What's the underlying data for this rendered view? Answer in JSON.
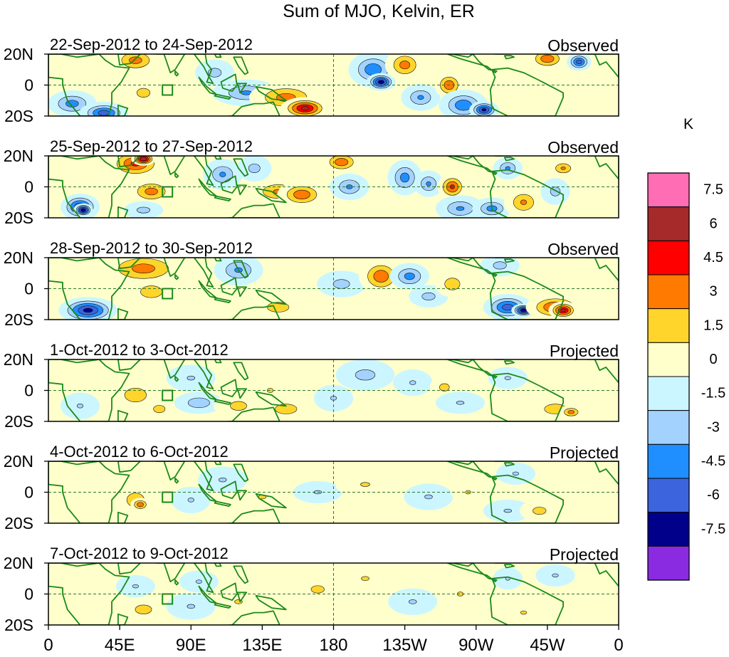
{
  "chart_data": {
    "type": "heatmap",
    "title": "Sum of MJO, Kelvin, ER",
    "units_label": "K",
    "lat_ticks": [
      "20N",
      "0",
      "20S"
    ],
    "lon_ticks": [
      "0",
      "45E",
      "90E",
      "135E",
      "180",
      "135W",
      "90W",
      "45W",
      "0"
    ],
    "colorbar": {
      "labels": [
        "7.5",
        "6",
        "4.5",
        "3",
        "1.5",
        "0",
        "-1.5",
        "-3",
        "-4.5",
        "-6",
        "-7.5"
      ],
      "colors": [
        "#ff6eb4",
        "#a52a2a",
        "#ff0000",
        "#ff7a00",
        "#ffd52c",
        "#ffffcc",
        "#ccf6ff",
        "#a4d2ff",
        "#1f8fff",
        "#3c64dc",
        "#00008b",
        "#8a2be2"
      ]
    },
    "panels": [
      {
        "date": "22-Sep-2012 to 24-Sep-2012",
        "tag": "Observed",
        "blobs": [
          [
            15,
            -12,
            10,
            6,
            -3.5
          ],
          [
            35,
            -18,
            10,
            5,
            -5
          ],
          [
            55,
            16,
            10,
            6,
            3.5
          ],
          [
            60,
            -5,
            8,
            6,
            2
          ],
          [
            105,
            8,
            8,
            6,
            -2
          ],
          [
            125,
            -5,
            14,
            6,
            -3
          ],
          [
            150,
            -8,
            15,
            7,
            3.5
          ],
          [
            162,
            -15,
            10,
            5,
            6
          ],
          [
            205,
            10,
            10,
            8,
            -4
          ],
          [
            210,
            2,
            6,
            4,
            -6.5
          ],
          [
            225,
            13,
            8,
            7,
            3.5
          ],
          [
            235,
            -8,
            8,
            6,
            -3
          ],
          [
            253,
            0,
            6,
            6,
            4
          ],
          [
            262,
            -13,
            10,
            7,
            -4
          ],
          [
            275,
            -16,
            6,
            4,
            -6
          ],
          [
            315,
            17,
            8,
            5,
            4
          ],
          [
            335,
            15,
            5,
            4,
            -5
          ]
        ]
      },
      {
        "date": "25-Sep-2012 to 27-Sep-2012",
        "tag": "Observed",
        "blobs": [
          [
            20,
            -13,
            8,
            6,
            -5.5
          ],
          [
            22,
            -15,
            4,
            3,
            -7
          ],
          [
            55,
            15,
            12,
            7,
            4.5
          ],
          [
            60,
            18,
            5,
            3,
            7
          ],
          [
            65,
            -3,
            10,
            6,
            3.5
          ],
          [
            60,
            -15,
            8,
            4,
            -2
          ],
          [
            110,
            8,
            8,
            7,
            -3
          ],
          [
            130,
            12,
            7,
            6,
            -2
          ],
          [
            145,
            -3,
            12,
            6,
            3
          ],
          [
            160,
            -5,
            10,
            6,
            4
          ],
          [
            185,
            16,
            8,
            5,
            4
          ],
          [
            190,
            0,
            8,
            6,
            -3
          ],
          [
            225,
            6,
            7,
            8,
            -3.5
          ],
          [
            240,
            2,
            6,
            6,
            -3
          ],
          [
            255,
            0,
            6,
            6,
            4.5
          ],
          [
            260,
            -14,
            10,
            6,
            -3
          ],
          [
            280,
            -14,
            8,
            5,
            -3.5
          ],
          [
            300,
            -10,
            8,
            7,
            3
          ],
          [
            320,
            -3,
            6,
            6,
            -2
          ],
          [
            290,
            12,
            6,
            5,
            -3
          ],
          [
            325,
            12,
            6,
            4,
            3
          ]
        ]
      },
      {
        "date": "28-Sep-2012 to 30-Sep-2012",
        "tag": "Observed",
        "blobs": [
          [
            25,
            -14,
            12,
            6,
            -6
          ],
          [
            60,
            13,
            18,
            8,
            3.5
          ],
          [
            65,
            -2,
            10,
            6,
            2.5
          ],
          [
            120,
            12,
            10,
            7,
            -3
          ],
          [
            145,
            -12,
            10,
            5,
            2.5
          ],
          [
            185,
            3,
            10,
            6,
            -2
          ],
          [
            210,
            8,
            9,
            8,
            4
          ],
          [
            228,
            8,
            8,
            6,
            -3.5
          ],
          [
            240,
            -5,
            8,
            5,
            -2
          ],
          [
            285,
            15,
            8,
            5,
            -2
          ],
          [
            290,
            -12,
            10,
            6,
            -5
          ],
          [
            300,
            -14,
            5,
            3,
            -7
          ],
          [
            320,
            -12,
            12,
            6,
            4.5
          ],
          [
            325,
            -14,
            6,
            4,
            6
          ],
          [
            255,
            3,
            7,
            6,
            2.5
          ]
        ]
      },
      {
        "date": "1-Oct-2012 to 3-Oct-2012",
        "tag": "Projected",
        "blobs": [
          [
            20,
            -10,
            8,
            6,
            -1.5
          ],
          [
            55,
            -3,
            10,
            7,
            2.5
          ],
          [
            70,
            -12,
            7,
            5,
            2
          ],
          [
            90,
            8,
            10,
            6,
            -1.5
          ],
          [
            95,
            -8,
            10,
            5,
            -2.5
          ],
          [
            120,
            -10,
            10,
            6,
            2
          ],
          [
            140,
            0,
            8,
            6,
            1.5
          ],
          [
            150,
            -12,
            10,
            5,
            2.5
          ],
          [
            180,
            -5,
            8,
            6,
            -1.5
          ],
          [
            200,
            10,
            12,
            7,
            -2
          ],
          [
            230,
            5,
            8,
            6,
            -1.5
          ],
          [
            250,
            2,
            6,
            5,
            2
          ],
          [
            260,
            -8,
            10,
            5,
            -1.5
          ],
          [
            290,
            8,
            8,
            5,
            -1.5
          ],
          [
            320,
            -12,
            10,
            5,
            2.5
          ],
          [
            330,
            -14,
            5,
            3,
            3.5
          ]
        ]
      },
      {
        "date": "4-Oct-2012 to 6-Oct-2012",
        "tag": "Projected",
        "blobs": [
          [
            55,
            -5,
            8,
            7,
            2.5
          ],
          [
            58,
            -8,
            4,
            3,
            4
          ],
          [
            90,
            -5,
            8,
            6,
            -1.5
          ],
          [
            110,
            8,
            10,
            6,
            -1.5
          ],
          [
            135,
            -3,
            10,
            6,
            1.5
          ],
          [
            170,
            0,
            10,
            5,
            -1.5
          ],
          [
            200,
            5,
            12,
            6,
            1.5
          ],
          [
            240,
            -3,
            10,
            6,
            -1.5
          ],
          [
            265,
            0,
            7,
            5,
            1.5
          ],
          [
            290,
            -12,
            10,
            5,
            -1.5
          ],
          [
            310,
            -12,
            8,
            5,
            2
          ],
          [
            295,
            12,
            8,
            5,
            -1.5
          ]
        ]
      },
      {
        "date": "7-Oct-2012 to 9-Oct-2012",
        "tag": "Projected",
        "blobs": [
          [
            60,
            -10,
            10,
            6,
            2
          ],
          [
            55,
            5,
            8,
            5,
            -1.5
          ],
          [
            90,
            -8,
            10,
            6,
            -1.5
          ],
          [
            95,
            8,
            8,
            5,
            -1.5
          ],
          [
            120,
            -5,
            10,
            6,
            1.5
          ],
          [
            170,
            3,
            8,
            5,
            2
          ],
          [
            200,
            10,
            10,
            6,
            1.5
          ],
          [
            230,
            -5,
            10,
            6,
            -1.5
          ],
          [
            260,
            0,
            8,
            6,
            1.5
          ],
          [
            290,
            10,
            6,
            5,
            -1.5
          ],
          [
            300,
            -12,
            8,
            5,
            1.5
          ],
          [
            320,
            12,
            8,
            5,
            -1.5
          ]
        ]
      }
    ]
  }
}
